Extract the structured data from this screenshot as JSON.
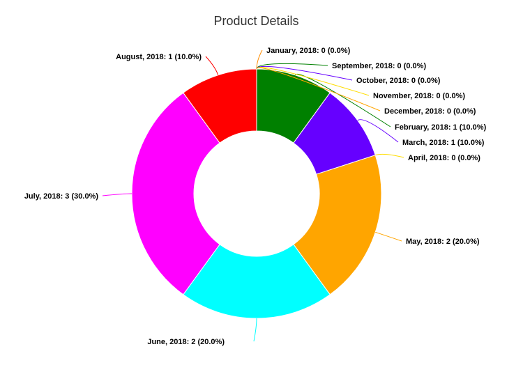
{
  "chart_data": {
    "type": "pie",
    "donut": true,
    "title": "Product Details",
    "slices": [
      {
        "category": "January, 2018",
        "value": 0,
        "percent": "0.0%",
        "color": "#ff8c00",
        "label": "January, 2018: 0 (0.0%)"
      },
      {
        "category": "February, 2018",
        "value": 1,
        "percent": "10.0%",
        "color": "#008000",
        "label": "February, 2018: 1 (10.0%)"
      },
      {
        "category": "March, 2018",
        "value": 1,
        "percent": "10.0%",
        "color": "#6600ff",
        "label": "March, 2018: 1 (10.0%)"
      },
      {
        "category": "April, 2018",
        "value": 0,
        "percent": "0.0%",
        "color": "#ffdd00",
        "label": "April, 2018: 0 (0.0%)"
      },
      {
        "category": "May, 2018",
        "value": 2,
        "percent": "20.0%",
        "color": "#ffa500",
        "label": "May, 2018: 2 (20.0%)"
      },
      {
        "category": "June, 2018",
        "value": 2,
        "percent": "20.0%",
        "color": "#00ffff",
        "label": "June, 2018: 2 (20.0%)"
      },
      {
        "category": "July, 2018",
        "value": 3,
        "percent": "30.0%",
        "color": "#ff00ff",
        "label": "July, 2018: 3 (30.0%)"
      },
      {
        "category": "August, 2018",
        "value": 1,
        "percent": "10.0%",
        "color": "#ff0000",
        "label": "August, 2018: 1 (10.0%)"
      },
      {
        "category": "September, 2018",
        "value": 0,
        "percent": "0.0%",
        "color": "#008000",
        "label": "September, 2018: 0 (0.0%)"
      },
      {
        "category": "October, 2018",
        "value": 0,
        "percent": "0.0%",
        "color": "#6600ff",
        "label": "October, 2018: 0 (0.0%)"
      },
      {
        "category": "November, 2018",
        "value": 0,
        "percent": "0.0%",
        "color": "#ffdd00",
        "label": "November, 2018: 0 (0.0%)"
      },
      {
        "category": "December, 2018",
        "value": 0,
        "percent": "0.0%",
        "color": "#ffa500",
        "label": "December, 2018: 0 (0.0%)"
      }
    ]
  }
}
